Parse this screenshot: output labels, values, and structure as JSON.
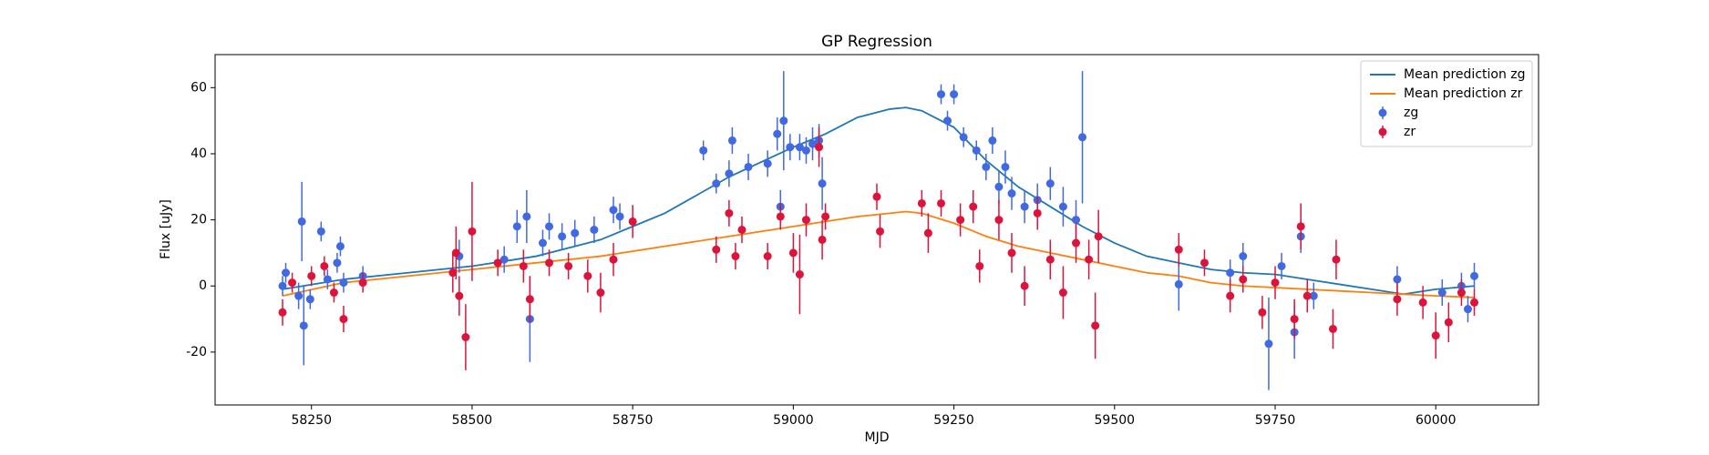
{
  "chart_data": {
    "type": "errorbar",
    "title": "GP Regression",
    "x_label": "MJD",
    "y_label": "Flux [uJy]",
    "xlim": [
      58100,
      60160
    ],
    "ylim": [
      -36,
      70
    ],
    "xticks": [
      58250,
      58500,
      58750,
      59000,
      59250,
      59500,
      59750,
      60000
    ],
    "yticks": [
      -20,
      0,
      20,
      40,
      60
    ],
    "legend": "upper right",
    "series": [
      {
        "name": "Mean prediction zg",
        "type": "line",
        "color": "#1f77b4",
        "x": [
          58205,
          58300,
          58400,
          58500,
          58600,
          58700,
          58750,
          58800,
          58900,
          59000,
          59050,
          59100,
          59150,
          59175,
          59200,
          59250,
          59300,
          59350,
          59400,
          59450,
          59500,
          59550,
          59600,
          59650,
          59700,
          59750,
          59800,
          59850,
          59900,
          59950,
          60000,
          60060
        ],
        "values": [
          -1,
          2,
          4,
          6,
          9,
          14,
          18,
          22,
          33,
          42,
          46,
          51,
          53.5,
          54,
          53,
          48,
          38,
          30,
          24,
          18,
          13,
          9,
          7,
          5,
          4,
          3.5,
          2,
          0.5,
          -1,
          -2.5,
          -1,
          0
        ]
      },
      {
        "name": "Mean prediction zr",
        "type": "line",
        "color": "#ff7f0e",
        "x": [
          58205,
          58300,
          58400,
          58500,
          58600,
          58700,
          58800,
          58900,
          59000,
          59050,
          59100,
          59150,
          59175,
          59200,
          59250,
          59300,
          59350,
          59400,
          59450,
          59500,
          59550,
          59600,
          59650,
          59700,
          59750,
          59800,
          59850,
          59900,
          59950,
          60000,
          60060
        ],
        "values": [
          -3,
          1,
          3,
          5,
          7,
          9,
          12,
          15,
          18,
          19.5,
          21,
          22,
          22.5,
          22,
          19,
          15,
          12,
          10,
          8,
          6,
          4,
          3,
          1,
          0,
          -0.5,
          -1,
          -1.5,
          -2,
          -2.5,
          -3,
          -3.5
        ]
      },
      {
        "name": "zg",
        "type": "errorbar",
        "color": "#4169e1",
        "x": [
          58205,
          58210,
          58230,
          58235,
          58238,
          58248,
          58265,
          58275,
          58290,
          58295,
          58300,
          58330,
          58480,
          58550,
          58570,
          58585,
          58590,
          58610,
          58620,
          58640,
          58660,
          58690,
          58720,
          58730,
          58860,
          58880,
          58900,
          58905,
          58930,
          58960,
          58975,
          58980,
          58985,
          58995,
          59010,
          59020,
          59030,
          59040,
          59045,
          59230,
          59240,
          59250,
          59265,
          59285,
          59300,
          59310,
          59320,
          59330,
          59340,
          59360,
          59380,
          59400,
          59420,
          59440,
          59450,
          59600,
          59680,
          59700,
          59740,
          59760,
          59780,
          59790,
          59810,
          59940,
          60010,
          60040,
          60050,
          60060
        ],
        "values": [
          0,
          4,
          -3,
          19.5,
          -12,
          -4,
          16.5,
          2,
          7,
          12,
          1,
          3,
          9,
          8,
          18,
          21,
          -10,
          13,
          18,
          15,
          16,
          17,
          23,
          21,
          41,
          31,
          34,
          44,
          36,
          37,
          46,
          24,
          50,
          42,
          42,
          41,
          43,
          44,
          31,
          58,
          50,
          58,
          45,
          41,
          36,
          44,
          30,
          36,
          28,
          24,
          26,
          31,
          24,
          20,
          45,
          0.5,
          4,
          9,
          -17.5,
          6,
          -14,
          15,
          -3,
          2,
          -2,
          0,
          -7,
          3
        ],
        "errors": [
          3,
          3,
          4,
          12,
          12,
          3,
          3,
          3,
          3,
          3,
          3,
          3,
          5,
          4,
          5,
          8,
          13,
          4,
          4,
          4,
          4,
          4,
          4,
          4,
          3,
          3,
          4,
          4,
          4,
          4,
          5,
          5,
          15,
          4,
          4,
          4,
          5,
          5,
          8,
          3,
          3,
          3,
          3,
          3,
          4,
          4,
          5,
          5,
          5,
          5,
          5,
          5,
          6,
          6,
          20,
          8,
          4,
          4,
          14,
          4,
          8,
          5,
          4,
          4,
          4,
          4,
          4,
          4
        ]
      },
      {
        "name": "zr",
        "type": "errorbar",
        "color": "#dc143c",
        "x": [
          58205,
          58220,
          58250,
          58270,
          58285,
          58300,
          58330,
          58470,
          58475,
          58480,
          58490,
          58500,
          58540,
          58580,
          58590,
          58620,
          58650,
          58680,
          58700,
          58720,
          58750,
          58880,
          58900,
          58910,
          58920,
          58960,
          58980,
          59000,
          59010,
          59020,
          59040,
          59045,
          59050,
          59130,
          59135,
          59200,
          59210,
          59230,
          59260,
          59280,
          59290,
          59320,
          59340,
          59360,
          59380,
          59400,
          59420,
          59440,
          59460,
          59470,
          59475,
          59600,
          59640,
          59680,
          59700,
          59730,
          59750,
          59780,
          59790,
          59800,
          59840,
          59845,
          59940,
          59980,
          60000,
          60020,
          60040,
          60060
        ],
        "values": [
          -8,
          1,
          3,
          6,
          -2,
          -10,
          1,
          4,
          10,
          -3,
          -15.5,
          16.5,
          7,
          6,
          -4,
          7,
          6,
          3,
          -2,
          8,
          19.5,
          11,
          22,
          9,
          17,
          9,
          21,
          10,
          3.5,
          20,
          42,
          14,
          21,
          27,
          16.5,
          25,
          16,
          25,
          20,
          24,
          6,
          20,
          10,
          0,
          22,
          8,
          -2,
          13,
          8,
          -12,
          15,
          11,
          7,
          -3,
          2,
          -8,
          1,
          -10,
          18,
          -3,
          -13,
          8,
          -4,
          -5,
          -15,
          -11,
          -2,
          -5
        ],
        "errors": [
          4,
          3,
          3,
          3,
          3,
          4,
          3,
          6,
          8,
          6,
          10,
          15,
          4,
          5,
          7,
          4,
          4,
          5,
          6,
          5,
          5,
          4,
          4,
          4,
          4,
          4,
          4,
          6,
          12,
          5,
          6,
          6,
          4,
          4,
          5,
          4,
          6,
          4,
          5,
          5,
          5,
          6,
          6,
          6,
          5,
          6,
          8,
          6,
          6,
          10,
          8,
          5,
          4,
          5,
          4,
          5,
          5,
          6,
          7,
          5,
          6,
          6,
          5,
          5,
          7,
          6,
          4,
          4
        ]
      }
    ]
  }
}
